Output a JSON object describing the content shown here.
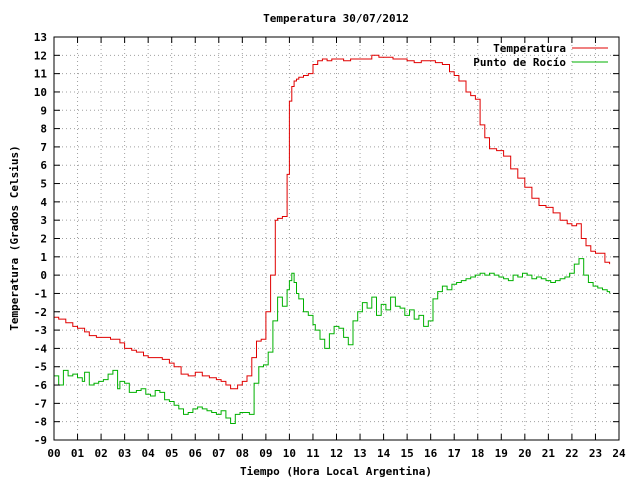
{
  "chart_data": {
    "type": "line",
    "title": "Temperatura 30/07/2012",
    "xlabel": "Tiempo (Hora Local Argentina)",
    "ylabel": "Temperatura (Grados Celsius)",
    "xlim": [
      0,
      24
    ],
    "ylim": [
      -9,
      13
    ],
    "x_ticks": [
      "00",
      "01",
      "02",
      "03",
      "04",
      "05",
      "06",
      "07",
      "08",
      "09",
      "10",
      "11",
      "12",
      "13",
      "14",
      "15",
      "16",
      "17",
      "18",
      "19",
      "20",
      "21",
      "22",
      "23",
      "24"
    ],
    "y_ticks": [
      "13",
      "12",
      "11",
      "10",
      "9",
      "8",
      "7",
      "6",
      "5",
      "4",
      "3",
      "2",
      "1",
      "0",
      "-1",
      "-2",
      "-3",
      "-4",
      "-5",
      "-6",
      "-7",
      "-8",
      "-9"
    ],
    "grid": true,
    "legend_position": "top-right",
    "series": [
      {
        "name": "Temperatura",
        "color": "#e00000",
        "x": [
          0.0,
          0.2,
          0.5,
          0.8,
          1.0,
          1.3,
          1.5,
          1.8,
          2.1,
          2.4,
          2.6,
          2.8,
          3.0,
          3.3,
          3.5,
          3.8,
          4.0,
          4.3,
          4.6,
          4.9,
          5.1,
          5.4,
          5.7,
          6.0,
          6.3,
          6.6,
          6.9,
          7.1,
          7.3,
          7.5,
          7.8,
          8.0,
          8.2,
          8.4,
          8.6,
          8.8,
          9.0,
          9.2,
          9.4,
          9.5,
          9.7,
          9.9,
          10.0,
          10.1,
          10.2,
          10.3,
          10.4,
          10.6,
          10.8,
          11.0,
          11.2,
          11.4,
          11.6,
          11.8,
          12.0,
          12.3,
          12.6,
          12.9,
          13.2,
          13.5,
          13.8,
          14.1,
          14.4,
          14.7,
          15.0,
          15.3,
          15.6,
          15.9,
          16.2,
          16.5,
          16.8,
          17.0,
          17.2,
          17.5,
          17.7,
          17.9,
          18.1,
          18.3,
          18.5,
          18.8,
          19.1,
          19.4,
          19.7,
          20.0,
          20.3,
          20.6,
          20.9,
          21.2,
          21.5,
          21.8,
          22.0,
          22.2,
          22.4,
          22.6,
          22.8,
          23.0,
          23.2,
          23.4,
          23.6
        ],
        "values": [
          -2.3,
          -2.4,
          -2.6,
          -2.8,
          -2.9,
          -3.1,
          -3.3,
          -3.4,
          -3.4,
          -3.5,
          -3.5,
          -3.7,
          -4.0,
          -4.1,
          -4.2,
          -4.4,
          -4.5,
          -4.5,
          -4.6,
          -4.8,
          -5.0,
          -5.4,
          -5.5,
          -5.3,
          -5.5,
          -5.6,
          -5.7,
          -5.8,
          -6.0,
          -6.2,
          -6.0,
          -5.8,
          -5.5,
          -4.5,
          -3.6,
          -3.5,
          -2.0,
          0.0,
          3.0,
          3.1,
          3.2,
          5.5,
          9.5,
          10.3,
          10.6,
          10.7,
          10.8,
          10.9,
          11.0,
          11.5,
          11.7,
          11.8,
          11.7,
          11.8,
          11.8,
          11.7,
          11.8,
          11.8,
          11.8,
          12.0,
          11.9,
          11.9,
          11.8,
          11.8,
          11.7,
          11.6,
          11.7,
          11.7,
          11.6,
          11.5,
          11.1,
          10.9,
          10.6,
          10.0,
          9.8,
          9.6,
          8.2,
          7.5,
          6.9,
          6.8,
          6.5,
          5.8,
          5.3,
          4.8,
          4.2,
          3.8,
          3.7,
          3.4,
          3.0,
          2.8,
          2.7,
          2.8,
          2.0,
          1.6,
          1.3,
          1.2,
          1.2,
          0.7,
          0.6
        ]
      },
      {
        "name": "Punto de Rocío",
        "color": "#00b000",
        "x": [
          0.0,
          0.2,
          0.4,
          0.6,
          0.8,
          1.0,
          1.2,
          1.3,
          1.5,
          1.7,
          1.9,
          2.1,
          2.3,
          2.5,
          2.7,
          2.8,
          3.0,
          3.2,
          3.5,
          3.7,
          3.9,
          4.1,
          4.3,
          4.5,
          4.7,
          4.9,
          5.1,
          5.3,
          5.5,
          5.7,
          5.9,
          6.1,
          6.3,
          6.5,
          6.7,
          6.9,
          7.1,
          7.3,
          7.5,
          7.7,
          7.9,
          8.1,
          8.3,
          8.5,
          8.7,
          8.9,
          9.1,
          9.3,
          9.5,
          9.7,
          9.9,
          10.0,
          10.1,
          10.2,
          10.3,
          10.4,
          10.6,
          10.8,
          11.0,
          11.1,
          11.3,
          11.5,
          11.7,
          11.9,
          12.1,
          12.3,
          12.5,
          12.7,
          12.9,
          13.1,
          13.3,
          13.5,
          13.7,
          13.9,
          14.1,
          14.3,
          14.5,
          14.7,
          14.9,
          15.1,
          15.3,
          15.5,
          15.7,
          15.9,
          16.1,
          16.3,
          16.5,
          16.7,
          16.9,
          17.1,
          17.3,
          17.5,
          17.7,
          17.9,
          18.1,
          18.3,
          18.5,
          18.7,
          18.9,
          19.1,
          19.3,
          19.5,
          19.7,
          19.9,
          20.1,
          20.3,
          20.5,
          20.7,
          20.9,
          21.1,
          21.3,
          21.5,
          21.7,
          21.9,
          22.1,
          22.3,
          22.5,
          22.7,
          22.9,
          23.1,
          23.3,
          23.5,
          23.6
        ],
        "values": [
          -5.5,
          -6.0,
          -5.2,
          -5.5,
          -5.4,
          -5.6,
          -5.8,
          -5.3,
          -6.0,
          -5.9,
          -5.8,
          -5.7,
          -5.4,
          -5.2,
          -6.2,
          -5.8,
          -5.9,
          -6.4,
          -6.3,
          -6.2,
          -6.5,
          -6.6,
          -6.3,
          -6.4,
          -6.8,
          -6.9,
          -7.1,
          -7.3,
          -7.6,
          -7.5,
          -7.3,
          -7.2,
          -7.3,
          -7.4,
          -7.5,
          -7.6,
          -7.4,
          -7.8,
          -8.1,
          -7.6,
          -7.5,
          -7.5,
          -7.6,
          -5.9,
          -5.0,
          -4.9,
          -4.2,
          -2.5,
          -1.2,
          -1.7,
          -0.8,
          -0.3,
          0.1,
          -0.4,
          -1.0,
          -1.3,
          -2.0,
          -2.2,
          -2.7,
          -3.0,
          -3.5,
          -4.0,
          -3.2,
          -2.8,
          -2.9,
          -3.4,
          -3.8,
          -2.5,
          -2.0,
          -1.5,
          -1.8,
          -1.2,
          -2.2,
          -1.6,
          -1.9,
          -1.2,
          -1.7,
          -1.8,
          -2.2,
          -1.9,
          -2.4,
          -2.2,
          -2.8,
          -2.5,
          -1.3,
          -0.9,
          -0.6,
          -0.8,
          -0.5,
          -0.4,
          -0.3,
          -0.2,
          -0.1,
          0.0,
          0.1,
          0.0,
          0.1,
          0.0,
          -0.1,
          -0.2,
          -0.3,
          0.0,
          -0.1,
          0.1,
          0.0,
          -0.2,
          -0.1,
          -0.2,
          -0.3,
          -0.4,
          -0.3,
          -0.2,
          -0.1,
          0.1,
          0.6,
          0.9,
          0.0,
          -0.4,
          -0.6,
          -0.7,
          -0.8,
          -0.9,
          -1.0
        ]
      }
    ]
  }
}
